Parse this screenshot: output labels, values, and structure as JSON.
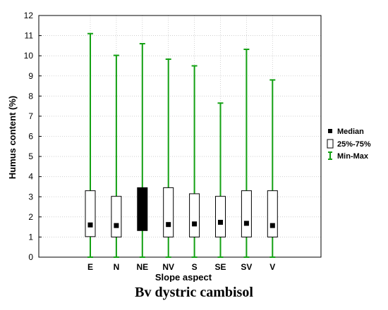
{
  "caption": "Bv dystric cambisol",
  "chart_data": {
    "type": "boxplot",
    "title": "",
    "xlabel": "Slope aspect",
    "ylabel": "Humus content (%)",
    "ylim": [
      0,
      12
    ],
    "yticks": [
      0,
      1,
      2,
      3,
      4,
      5,
      6,
      7,
      8,
      9,
      10,
      11,
      12
    ],
    "grid": true,
    "legend_position": "right",
    "legend": [
      {
        "label": "Median",
        "marker": "filled-square"
      },
      {
        "label": "25%-75%",
        "marker": "open-box"
      },
      {
        "label": "Min-Max",
        "marker": "whisker"
      }
    ],
    "categories": [
      "E",
      "N",
      "NE",
      "NV",
      "S",
      "SE",
      "SV",
      "V"
    ],
    "series": [
      {
        "category": "E",
        "min": 0,
        "q1": 1.02,
        "median": 1.6,
        "q3": 3.3,
        "max": 11.1
      },
      {
        "category": "N",
        "min": 0,
        "q1": 1.0,
        "median": 1.57,
        "q3": 3.02,
        "max": 10.02
      },
      {
        "category": "NE",
        "min": 0,
        "q1": 1.32,
        "median": 2.38,
        "q3": 3.45,
        "max": 10.6,
        "box_fill": "#000000"
      },
      {
        "category": "NV",
        "min": 0,
        "q1": 1.0,
        "median": 1.62,
        "q3": 3.45,
        "max": 9.83
      },
      {
        "category": "S",
        "min": 0,
        "q1": 1.0,
        "median": 1.65,
        "q3": 3.15,
        "max": 9.5
      },
      {
        "category": "SE",
        "min": 0,
        "q1": 1.0,
        "median": 1.73,
        "q3": 3.02,
        "max": 7.65
      },
      {
        "category": "SV",
        "min": 0,
        "q1": 1.0,
        "median": 1.68,
        "q3": 3.3,
        "max": 10.32
      },
      {
        "category": "V",
        "min": 0,
        "q1": 1.0,
        "median": 1.57,
        "q3": 3.3,
        "max": 8.8
      }
    ],
    "colors": {
      "whisker": "#12a012",
      "box_stroke": "#000000",
      "median": "#000000",
      "grid": "#c8c8c8"
    }
  }
}
